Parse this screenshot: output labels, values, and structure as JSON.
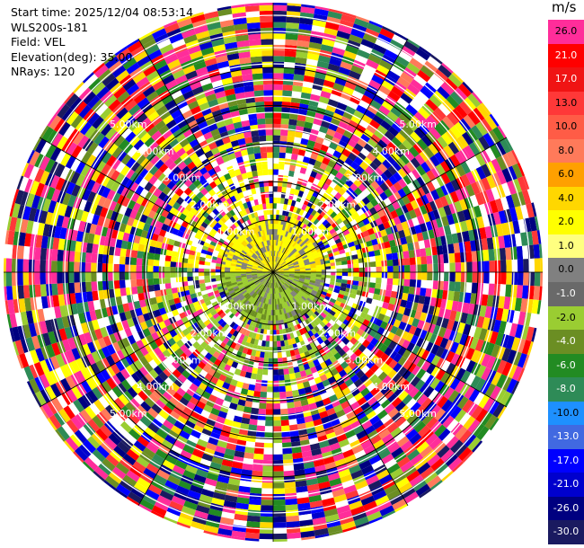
{
  "header": {
    "start_time": "Start time: 2025/12/04 08:53:14",
    "station": "WLS200s-181",
    "field": "Field: VEL",
    "elevation": "Elevation(deg): 35.00",
    "nrays": "NRays: 120"
  },
  "colorbar": {
    "unit": "m/s",
    "levels": [
      {
        "label": "26.0",
        "color": "#ff2d9a"
      },
      {
        "label": "21.0",
        "color": "#ff0000"
      },
      {
        "label": "17.0",
        "color": "#f01414"
      },
      {
        "label": "13.0",
        "color": "#ff3838"
      },
      {
        "label": "10.0",
        "color": "#ff5c46"
      },
      {
        "label": "8.0",
        "color": "#ff7a5a"
      },
      {
        "label": "6.0",
        "color": "#ffa000"
      },
      {
        "label": "4.0",
        "color": "#ffd700"
      },
      {
        "label": "2.0",
        "color": "#ffff00"
      },
      {
        "label": "1.0",
        "color": "#ffff80"
      },
      {
        "label": "0.0",
        "color": "#808080"
      },
      {
        "label": "-1.0",
        "color": "#696969"
      },
      {
        "label": "-2.0",
        "color": "#9acd32"
      },
      {
        "label": "-4.0",
        "color": "#6b8e23"
      },
      {
        "label": "-6.0",
        "color": "#228b22"
      },
      {
        "label": "-8.0",
        "color": "#2e8b57"
      },
      {
        "label": "-10.0",
        "color": "#1e90ff"
      },
      {
        "label": "-13.0",
        "color": "#4169e1"
      },
      {
        "label": "-17.0",
        "color": "#0000ff"
      },
      {
        "label": "-21.0",
        "color": "#0000cd"
      },
      {
        "label": "-26.0",
        "color": "#000080"
      },
      {
        "label": "-30.0",
        "color": "#1a1a60"
      }
    ]
  },
  "chart_data": {
    "type": "heatmap",
    "projection": "polar PPI",
    "field": "VEL",
    "elevation_deg": 35.0,
    "n_rays": 120,
    "range_rings_km": [
      1.0,
      2.0,
      3.0,
      4.0,
      5.0
    ],
    "range_labels_upper": [
      "1.00km",
      "2.00km",
      "3.00km",
      "4.00km",
      "5.00km"
    ],
    "range_labels_lower": [
      "1.00km",
      "2.00km",
      "3.00km",
      "4.00km",
      "5.00km"
    ],
    "max_range_km": 7.0,
    "spokes": 12
  }
}
